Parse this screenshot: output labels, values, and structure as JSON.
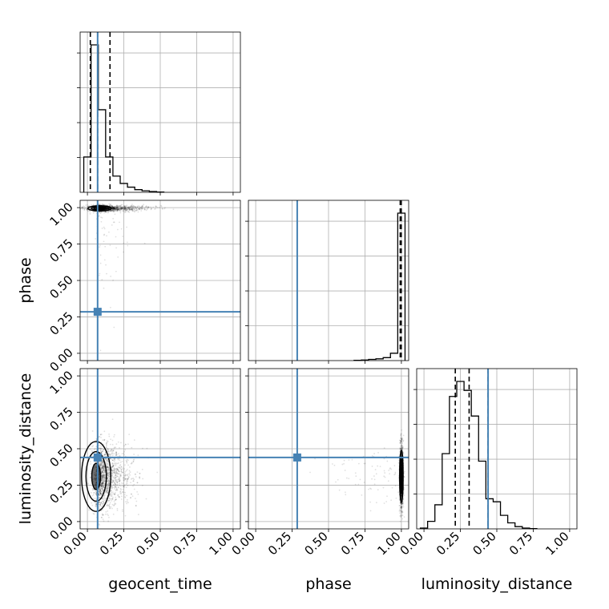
{
  "chart_data": {
    "type": "corner",
    "parameters": [
      "geocent_time",
      "phase",
      "luminosity_distance"
    ],
    "axis_labels": {
      "geocent_time": "geocent_time",
      "phase": "phase",
      "luminosity_distance": "luminosity_distance"
    },
    "range": [
      -0.05,
      1.05
    ],
    "ticks": [
      0.0,
      0.25,
      0.5,
      0.75,
      1.0
    ],
    "tick_labels": [
      "0.00",
      "0.25",
      "0.50",
      "0.75",
      "1.00"
    ],
    "grid": true,
    "truths": {
      "geocent_time": 0.07,
      "phase": 0.285,
      "luminosity_distance": 0.44
    },
    "truth_color": "#4682b4",
    "histograms": {
      "geocent_time": {
        "bin_edges": [
          -0.025,
          0.025,
          0.075,
          0.125,
          0.175,
          0.225,
          0.275,
          0.325,
          0.375,
          0.425,
          0.475,
          0.525
        ],
        "counts": [
          0.24,
          1.0,
          0.56,
          0.24,
          0.11,
          0.06,
          0.035,
          0.018,
          0.01,
          0.005,
          0.002
        ],
        "quantiles": [
          0.02,
          0.07,
          0.155
        ]
      },
      "phase": {
        "bin_edges": [
          0.675,
          0.725,
          0.775,
          0.825,
          0.875,
          0.925,
          0.975,
          1.025
        ],
        "counts": [
          0.002,
          0.004,
          0.008,
          0.012,
          0.02,
          0.05,
          1.0
        ],
        "quantiles": [
          0.992,
          0.997,
          0.999
        ]
      },
      "luminosity_distance": {
        "bin_edges": [
          -0.025,
          0.025,
          0.075,
          0.125,
          0.175,
          0.225,
          0.275,
          0.325,
          0.375,
          0.425,
          0.475,
          0.525,
          0.575,
          0.625,
          0.675,
          0.725,
          0.775
        ],
        "counts": [
          0.005,
          0.05,
          0.16,
          0.5,
          0.88,
          0.98,
          0.92,
          0.75,
          0.45,
          0.2,
          0.18,
          0.09,
          0.04,
          0.015,
          0.005,
          0.002
        ],
        "quantiles": [
          0.215,
          0.31,
          0.44
        ]
      }
    },
    "contours": {
      "geocent_time-phase": {
        "center": [
          0.06,
          0.995
        ],
        "levels": [
          [
            0.02,
            0.008
          ],
          [
            0.045,
            0.012
          ],
          [
            0.08,
            0.018
          ]
        ]
      },
      "geocent_time-luminosity_distance": {
        "center": [
          0.06,
          0.31
        ],
        "levels": [
          [
            0.03,
            0.09
          ],
          [
            0.07,
            0.17
          ],
          [
            0.1,
            0.24
          ]
        ]
      },
      "phase-luminosity_distance": {
        "center": [
          1.0,
          0.31
        ],
        "levels": [
          [
            0.004,
            0.06
          ],
          [
            0.008,
            0.12
          ],
          [
            0.012,
            0.18
          ]
        ]
      }
    }
  }
}
